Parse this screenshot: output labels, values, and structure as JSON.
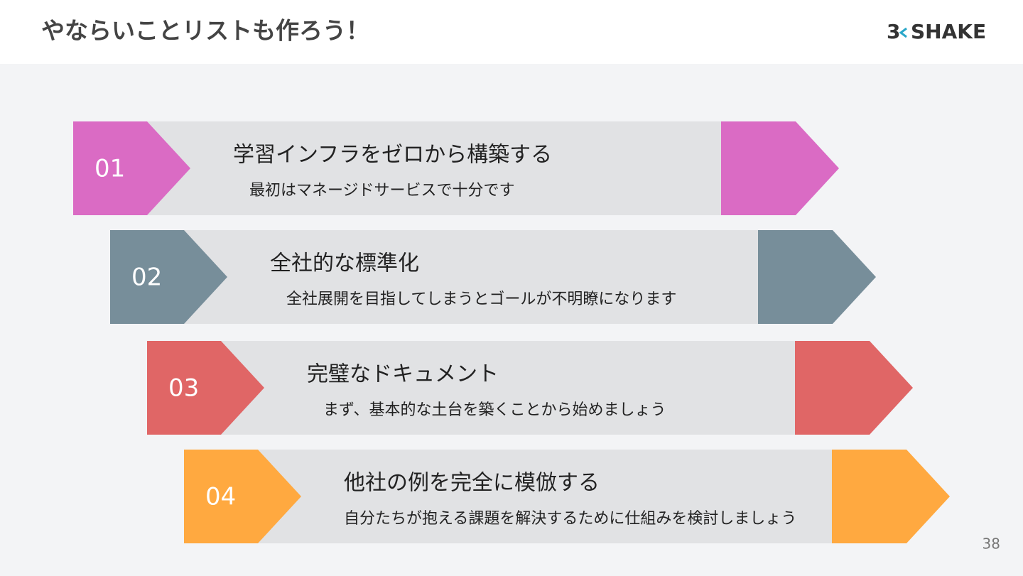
{
  "header": {
    "title": "やならいことリストも作ろう！",
    "logo_left": "3",
    "logo_right": "SHAKE"
  },
  "items": [
    {
      "number": "01",
      "title": "学習インフラをゼロから構築する",
      "subtitle": "最初はマネージドサービスで十分です",
      "color": "#da6bc4"
    },
    {
      "number": "02",
      "title": "全社的な標準化",
      "subtitle": "全社展開を目指してしまうとゴールが不明瞭になります",
      "color": "#778e9a"
    },
    {
      "number": "03",
      "title": "完璧なドキュメント",
      "subtitle": "まず、基本的な土台を築くことから始めましょう",
      "color": "#e06666"
    },
    {
      "number": "04",
      "title": "他社の例を完全に模倣する",
      "subtitle": "自分たちが抱える課題を解決するために仕組みを検討しましょう",
      "color": "#ffa940"
    }
  ],
  "page_number": "38"
}
